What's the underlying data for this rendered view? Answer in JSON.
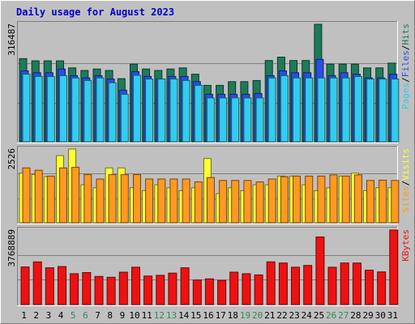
{
  "title": "Daily usage for August 2023",
  "colors": {
    "hits": "#1e7a5a",
    "files": "#2a4de6",
    "pages": "#33ccee",
    "visits": "#ffff33",
    "sites": "#ff9922",
    "kbytes": "#ee1111",
    "title": "#0000cc",
    "weekend_day": "#2e8b57",
    "weekday": "#000000"
  },
  "chart_data": [
    {
      "type": "bar",
      "name": "hits-files-pages",
      "categories": [
        "1",
        "2",
        "3",
        "4",
        "5",
        "6",
        "7",
        "8",
        "9",
        "10",
        "11",
        "12",
        "13",
        "14",
        "15",
        "16",
        "17",
        "18",
        "19",
        "20",
        "21",
        "22",
        "23",
        "24",
        "25",
        "26",
        "27",
        "28",
        "29",
        "30",
        "31"
      ],
      "ylim": [
        0,
        316487
      ],
      "max_label": "316487",
      "legend": [
        {
          "label": "Pages",
          "color": "#33ccee"
        },
        {
          "label": "Files",
          "color": "#2a4de6"
        },
        {
          "label": "Hits",
          "color": "#1e7a5a"
        }
      ],
      "series": [
        {
          "name": "Hits",
          "values": [
            224000,
            218000,
            218000,
            218000,
            199000,
            192000,
            196000,
            192000,
            170000,
            209000,
            196000,
            192000,
            196000,
            199000,
            182000,
            152000,
            152000,
            162000,
            162000,
            165000,
            219000,
            228000,
            219000,
            219000,
            316487,
            209000,
            209000,
            209000,
            199000,
            199000,
            212000
          ]
        },
        {
          "name": "Files",
          "values": [
            191000,
            186000,
            186000,
            196000,
            178000,
            172000,
            178000,
            169000,
            139000,
            189000,
            176000,
            169000,
            176000,
            176000,
            162000,
            128000,
            128000,
            128000,
            128000,
            130000,
            178000,
            191000,
            186000,
            186000,
            222000,
            178000,
            186000,
            182000,
            172000,
            172000,
            182000
          ]
        },
        {
          "name": "Pages",
          "values": [
            182000,
            176000,
            176000,
            178000,
            172000,
            165000,
            172000,
            159000,
            128000,
            179000,
            169000,
            169000,
            169000,
            165000,
            152000,
            118000,
            118000,
            118000,
            118000,
            118000,
            172000,
            178000,
            172000,
            172000,
            172000,
            172000,
            172000,
            176000,
            169000,
            169000,
            169000
          ]
        }
      ]
    },
    {
      "type": "bar",
      "name": "sites-visits",
      "categories": [
        "1",
        "2",
        "3",
        "4",
        "5",
        "6",
        "7",
        "8",
        "9",
        "10",
        "11",
        "12",
        "13",
        "14",
        "15",
        "16",
        "17",
        "18",
        "19",
        "20",
        "21",
        "22",
        "23",
        "24",
        "25",
        "26",
        "27",
        "28",
        "29",
        "30",
        "31"
      ],
      "ylim": [
        0,
        2526
      ],
      "max_label": "2526",
      "legend": [
        {
          "label": "Sites",
          "color": "#ff9922"
        },
        {
          "label": "Visits",
          "color": "#ffff33"
        }
      ],
      "series": [
        {
          "name": "Visits",
          "values": [
            1700,
            1650,
            1580,
            2300,
            2526,
            1300,
            1200,
            1880,
            1880,
            1200,
            1100,
            1300,
            1200,
            1100,
            1200,
            2200,
            1000,
            1200,
            1100,
            1300,
            1300,
            1600,
            1600,
            1300,
            1100,
            1200,
            1600,
            1700,
            1100,
            1200,
            1200
          ]
        },
        {
          "name": "Sites",
          "values": [
            1880,
            1800,
            1600,
            1880,
            1900,
            1650,
            1500,
            1650,
            1650,
            1650,
            1500,
            1500,
            1500,
            1500,
            1400,
            1550,
            1450,
            1450,
            1450,
            1400,
            1500,
            1580,
            1600,
            1600,
            1600,
            1640,
            1600,
            1640,
            1450,
            1460,
            1450
          ]
        }
      ]
    },
    {
      "type": "bar",
      "name": "kbytes",
      "categories": [
        "1",
        "2",
        "3",
        "4",
        "5",
        "6",
        "7",
        "8",
        "9",
        "10",
        "11",
        "12",
        "13",
        "14",
        "15",
        "16",
        "17",
        "18",
        "19",
        "20",
        "21",
        "22",
        "23",
        "24",
        "25",
        "26",
        "27",
        "28",
        "29",
        "30",
        "31"
      ],
      "ylim": [
        0,
        3768889
      ],
      "max_label": "3768889",
      "legend": [
        {
          "label": "KBytes",
          "color": "#ee1111"
        }
      ],
      "series": [
        {
          "name": "KBytes",
          "values": [
            1900000,
            2160000,
            1860000,
            1920000,
            1560000,
            1620000,
            1420000,
            1380000,
            1640000,
            1890000,
            1440000,
            1480000,
            1590000,
            1860000,
            1240000,
            1300000,
            1220000,
            1640000,
            1560000,
            1500000,
            2160000,
            2100000,
            1890000,
            1980000,
            3420000,
            1890000,
            2100000,
            2100000,
            1740000,
            1650000,
            3768889
          ]
        }
      ]
    }
  ],
  "day_labels": [
    {
      "label": "1",
      "weekend": false
    },
    {
      "label": "2",
      "weekend": false
    },
    {
      "label": "3",
      "weekend": false
    },
    {
      "label": "4",
      "weekend": false
    },
    {
      "label": "5",
      "weekend": true
    },
    {
      "label": "6",
      "weekend": true
    },
    {
      "label": "7",
      "weekend": false
    },
    {
      "label": "8",
      "weekend": false
    },
    {
      "label": "9",
      "weekend": false
    },
    {
      "label": "10",
      "weekend": false
    },
    {
      "label": "11",
      "weekend": false
    },
    {
      "label": "12",
      "weekend": true
    },
    {
      "label": "13",
      "weekend": true
    },
    {
      "label": "14",
      "weekend": false
    },
    {
      "label": "15",
      "weekend": false
    },
    {
      "label": "16",
      "weekend": false
    },
    {
      "label": "17",
      "weekend": false
    },
    {
      "label": "18",
      "weekend": false
    },
    {
      "label": "19",
      "weekend": true
    },
    {
      "label": "20",
      "weekend": true
    },
    {
      "label": "21",
      "weekend": false
    },
    {
      "label": "22",
      "weekend": false
    },
    {
      "label": "23",
      "weekend": false
    },
    {
      "label": "24",
      "weekend": false
    },
    {
      "label": "25",
      "weekend": false
    },
    {
      "label": "26",
      "weekend": true
    },
    {
      "label": "27",
      "weekend": true
    },
    {
      "label": "28",
      "weekend": false
    },
    {
      "label": "29",
      "weekend": false
    },
    {
      "label": "30",
      "weekend": false
    },
    {
      "label": "31",
      "weekend": false
    }
  ]
}
